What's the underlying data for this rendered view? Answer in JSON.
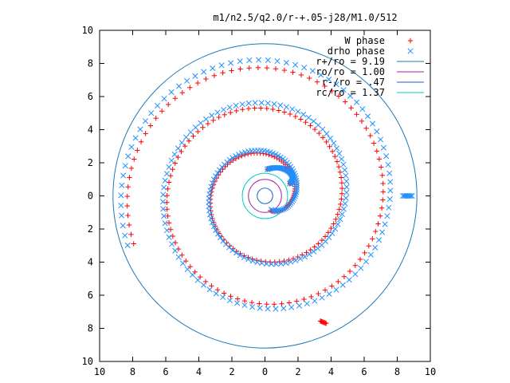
{
  "chart_data": {
    "type": "scatter",
    "title": "m1/n2.5/q2.0/r-+.05-j28/M1.0/512",
    "xlim": [
      -10,
      10
    ],
    "ylim": [
      -10,
      10
    ],
    "x_ticks": [
      -10,
      -8,
      -6,
      -4,
      -2,
      0,
      2,
      4,
      6,
      8,
      10
    ],
    "y_ticks": [
      -10,
      -8,
      -6,
      -4,
      -2,
      0,
      2,
      4,
      6,
      8,
      10
    ],
    "tick_label_abs": true,
    "grid": false,
    "legend_position": "top-right",
    "series": [
      {
        "name": "W phase",
        "kind": "points",
        "marker": "plus",
        "color": "#ff0000",
        "spiral": {
          "r_start": 0.95,
          "r_end": 8.45,
          "theta_start_deg": -70,
          "turns": 2.75,
          "tail_x": 3.7,
          "tail_y": -7.7
        }
      },
      {
        "name": "drho phase",
        "kind": "points",
        "marker": "cross",
        "color": "#1e90ff",
        "spiral": {
          "r_start": 0.95,
          "r_end": 8.9,
          "theta_start_deg": -70,
          "turns": 2.75,
          "tail_x": 8.9,
          "tail_y": 0.0
        }
      },
      {
        "name": "r+/ro = 9.19",
        "kind": "circle",
        "radius": 9.19,
        "color": "#1f77b4"
      },
      {
        "name": "ro/ro = 1.00",
        "kind": "circle",
        "radius": 1.0,
        "color": "#a020a0"
      },
      {
        "name": "r-/ro = .47",
        "kind": "circle",
        "radius": 0.47,
        "color": "#1565c0"
      },
      {
        "name": "rc/ro = 1.37",
        "kind": "circle",
        "radius": 1.37,
        "color": "#00c8c8"
      }
    ]
  }
}
